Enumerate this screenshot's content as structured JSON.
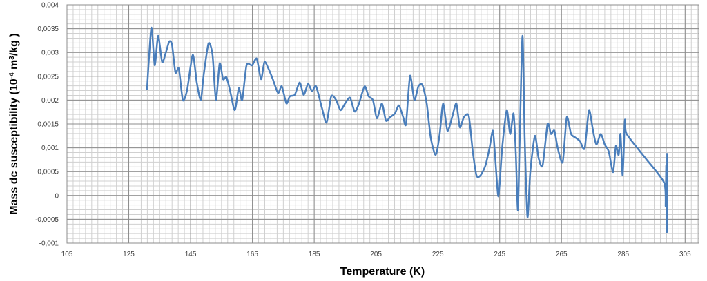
{
  "chart_data": {
    "type": "line",
    "xlabel": "Temperature (K)",
    "ylabel_parts": [
      "Mass dc susceptibility (10",
      "-4",
      " m",
      "3",
      "/kg )"
    ],
    "xlim": [
      105,
      309.4
    ],
    "ylim": [
      -0.001,
      0.004
    ],
    "xticks": [
      105,
      125,
      145,
      165,
      185,
      205,
      225,
      245,
      265,
      285,
      305
    ],
    "yticks": [
      {
        "value": -0.001,
        "label": "-0,001"
      },
      {
        "value": -0.0005,
        "label": "-0,0005"
      },
      0,
      {
        "value": 0.0005,
        "label": "0,0005"
      },
      {
        "value": 0.001,
        "label": "0,001"
      },
      {
        "value": 0.0015,
        "label": "0,0015"
      },
      {
        "value": 0.002,
        "label": "0,002"
      },
      {
        "value": 0.0025,
        "label": "0,0025"
      },
      {
        "value": 0.003,
        "label": "0,003"
      },
      {
        "value": 0.0035,
        "label": "0,0035"
      },
      {
        "value": 0.004,
        "label": "0,004"
      }
    ],
    "grid": true,
    "minor_xstep": 2,
    "minor_ystep": 0.0001,
    "series": [
      {
        "color": "#4a7ebb",
        "x": [
          130.9,
          132.3,
          133.4,
          134.5,
          135.8,
          137,
          138.1,
          139,
          140.1,
          141.2,
          142.5,
          143.9,
          145.7,
          147,
          148.3,
          149.2,
          150.8,
          152.1,
          153.2,
          154.4,
          155.5,
          156.6,
          157.7,
          159.3,
          160.6,
          161.7,
          163.1,
          164.9,
          166.4,
          167.8,
          168.9,
          170.2,
          171.6,
          173.3,
          174.5,
          176,
          177.1,
          178.7,
          180.3,
          181.6,
          183,
          184.3,
          185.6,
          187.4,
          189,
          190.5,
          192.1,
          193.5,
          195,
          196.6,
          198.1,
          199.5,
          201.3,
          202.6,
          204,
          205.3,
          206.9,
          208.2,
          209.5,
          211.1,
          212.4,
          213.8,
          214.7,
          216,
          217.4,
          218.7,
          220,
          221.4,
          222.7,
          224.3,
          225.6,
          226.7,
          228.1,
          229.6,
          231,
          232.1,
          233.4,
          235,
          236.3,
          237.5,
          238.8,
          240.4,
          241.7,
          242.8,
          243.5,
          244.6,
          245.8,
          247.3,
          248.4,
          249.5,
          250.2,
          250.9,
          251.5,
          252.4,
          253.1,
          254,
          254.9,
          256.4,
          257.6,
          258.9,
          260.5,
          261.6,
          262.7,
          263.8,
          265.4,
          266.7,
          268.1,
          269.6,
          271,
          272.5,
          273.9,
          275.2,
          276.3,
          277.7,
          279,
          280.3,
          281.7,
          282.6,
          283.5,
          284.1,
          284.8,
          285.5,
          286.1,
          292.2,
          298.2,
          298.7,
          298.9,
          299.1,
          299.2
        ],
        "values": [
          0.00222,
          0.00352,
          0.00273,
          0.00335,
          0.0028,
          0.003,
          0.00323,
          0.00316,
          0.00258,
          0.00266,
          0.002,
          0.00222,
          0.00295,
          0.00237,
          0.002,
          0.00251,
          0.00319,
          0.00295,
          0.002,
          0.00277,
          0.00244,
          0.00248,
          0.00222,
          0.00179,
          0.00225,
          0.002,
          0.00273,
          0.00273,
          0.00287,
          0.00244,
          0.0028,
          0.00266,
          0.00244,
          0.00215,
          0.00229,
          0.00193,
          0.00208,
          0.00211,
          0.00237,
          0.00211,
          0.00234,
          0.00219,
          0.00229,
          0.00186,
          0.00153,
          0.00208,
          0.002,
          0.00179,
          0.00193,
          0.00205,
          0.00176,
          0.00193,
          0.00229,
          0.00208,
          0.002,
          0.00162,
          0.00193,
          0.00157,
          0.00164,
          0.00172,
          0.00189,
          0.00164,
          0.0015,
          0.00251,
          0.002,
          0.00229,
          0.00232,
          0.00193,
          0.00121,
          0.00085,
          0.00129,
          0.00193,
          0.00136,
          0.00164,
          0.00193,
          0.00143,
          0.00164,
          0.00167,
          0.00092,
          0.00042,
          0.00042,
          0.00063,
          0.00099,
          0.00136,
          0.00085,
          -2e-05,
          0.00099,
          0.00179,
          0.00129,
          0.00172,
          0.00092,
          -0.00031,
          0.00121,
          0.00335,
          0.00121,
          -0.00045,
          0.00049,
          0.00125,
          0.00078,
          0.00063,
          0.0015,
          0.00129,
          0.00136,
          0.00099,
          0.0007,
          0.00164,
          0.00129,
          0.00121,
          0.00114,
          0.00099,
          0.00179,
          0.00136,
          0.00107,
          0.00129,
          0.00107,
          0.00092,
          0.00049,
          0.00104,
          0.00085,
          0.00129,
          0.00042,
          0.00157,
          0.00129,
          0.00078,
          0.00027,
          -0.00022,
          0.00063,
          -0.00077,
          0.00089
        ]
      }
    ]
  }
}
